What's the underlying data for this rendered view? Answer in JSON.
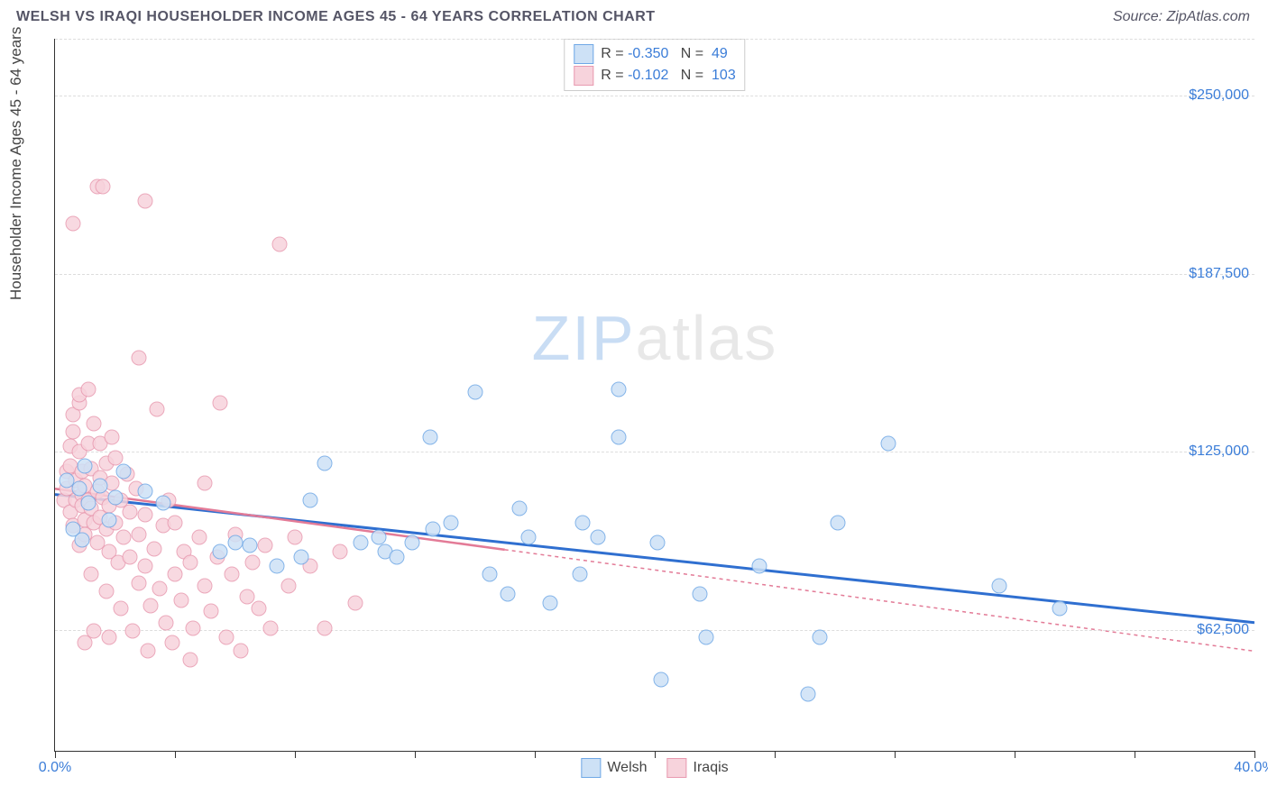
{
  "title": "WELSH VS IRAQI HOUSEHOLDER INCOME AGES 45 - 64 YEARS CORRELATION CHART",
  "source_prefix": "Source: ",
  "source": "ZipAtlas.com",
  "ylabel": "Householder Income Ages 45 - 64 years",
  "watermark_a": "ZIP",
  "watermark_b": "atlas",
  "chart": {
    "type": "scatter",
    "background_color": "#ffffff",
    "grid_color": "#dddddd",
    "axis_color": "#333333",
    "xlim": [
      0,
      40
    ],
    "ylim": [
      20000,
      270000
    ],
    "ytick_values": [
      62500,
      125000,
      187500,
      250000
    ],
    "ytick_labels": [
      "$62,500",
      "$125,000",
      "$187,500",
      "$250,000"
    ],
    "xtick_values": [
      0,
      4,
      8,
      12,
      16,
      20,
      24,
      28,
      32,
      36,
      40
    ],
    "xtick_labels": {
      "0": "0.0%",
      "40": "40.0%"
    },
    "title_fontsize": 16,
    "label_fontsize": 17,
    "tick_fontsize": 16,
    "marker_size": 17
  },
  "series": [
    {
      "key": "welsh",
      "label": "Welsh",
      "fill": "#cde1f6",
      "stroke": "#6fa8e6",
      "line_color": "#2f6fd0",
      "line_dash": "none",
      "R": "-0.350",
      "N": "49",
      "trend": {
        "x1": 0,
        "y1": 110000,
        "x2": 40,
        "y2": 65000
      },
      "points": [
        [
          0.4,
          115000
        ],
        [
          0.6,
          98000
        ],
        [
          0.8,
          112000
        ],
        [
          0.9,
          94000
        ],
        [
          1.0,
          120000
        ],
        [
          1.1,
          107000
        ],
        [
          1.5,
          113000
        ],
        [
          1.8,
          101000
        ],
        [
          2.0,
          109000
        ],
        [
          2.3,
          118000
        ],
        [
          3.0,
          111000
        ],
        [
          3.6,
          107000
        ],
        [
          5.5,
          90000
        ],
        [
          6.0,
          93000
        ],
        [
          6.5,
          92000
        ],
        [
          7.4,
          85000
        ],
        [
          8.2,
          88000
        ],
        [
          8.5,
          108000
        ],
        [
          9.0,
          121000
        ],
        [
          10.2,
          93000
        ],
        [
          10.8,
          95000
        ],
        [
          11.0,
          90000
        ],
        [
          11.4,
          88000
        ],
        [
          11.9,
          93000
        ],
        [
          12.5,
          130000
        ],
        [
          12.6,
          98000
        ],
        [
          13.2,
          100000
        ],
        [
          14.0,
          146000
        ],
        [
          14.5,
          82000
        ],
        [
          15.1,
          75000
        ],
        [
          15.5,
          105000
        ],
        [
          15.8,
          95000
        ],
        [
          16.5,
          72000
        ],
        [
          17.5,
          82000
        ],
        [
          17.6,
          100000
        ],
        [
          18.1,
          95000
        ],
        [
          18.8,
          130000
        ],
        [
          18.8,
          147000
        ],
        [
          20.2,
          45000
        ],
        [
          20.1,
          93000
        ],
        [
          21.5,
          75000
        ],
        [
          21.7,
          60000
        ],
        [
          23.5,
          85000
        ],
        [
          25.1,
          40000
        ],
        [
          25.5,
          60000
        ],
        [
          26.1,
          100000
        ],
        [
          27.8,
          128000
        ],
        [
          33.5,
          70000
        ],
        [
          31.5,
          78000
        ]
      ]
    },
    {
      "key": "iraqis",
      "label": "Iraqis",
      "fill": "#f7d3dc",
      "stroke": "#e89ab0",
      "line_color": "#e37b97",
      "line_dash": "4 4",
      "R": "-0.102",
      "N": "103",
      "trend": {
        "x1": 0,
        "y1": 112000,
        "x2": 40,
        "y2": 55000
      },
      "trend_solid_until": 15,
      "points": [
        [
          0.3,
          108000
        ],
        [
          0.4,
          112000
        ],
        [
          0.4,
          118000
        ],
        [
          0.5,
          120000
        ],
        [
          0.5,
          127000
        ],
        [
          0.5,
          104000
        ],
        [
          0.6,
          132000
        ],
        [
          0.6,
          138000
        ],
        [
          0.6,
          99000
        ],
        [
          0.7,
          108000
        ],
        [
          0.7,
          115000
        ],
        [
          0.8,
          142000
        ],
        [
          0.8,
          125000
        ],
        [
          0.8,
          92000
        ],
        [
          0.9,
          110000
        ],
        [
          0.9,
          118000
        ],
        [
          0.9,
          106000
        ],
        [
          1.0,
          101000
        ],
        [
          1.0,
          113000
        ],
        [
          1.0,
          96000
        ],
        [
          1.1,
          128000
        ],
        [
          1.1,
          108000
        ],
        [
          1.2,
          119000
        ],
        [
          1.2,
          105000
        ],
        [
          1.3,
          100000
        ],
        [
          1.3,
          135000
        ],
        [
          1.4,
          111000
        ],
        [
          1.4,
          93000
        ],
        [
          1.5,
          116000
        ],
        [
          1.5,
          102000
        ],
        [
          1.6,
          109000
        ],
        [
          1.7,
          98000
        ],
        [
          1.7,
          121000
        ],
        [
          1.8,
          106000
        ],
        [
          1.8,
          90000
        ],
        [
          1.9,
          114000
        ],
        [
          2.0,
          100000
        ],
        [
          2.0,
          123000
        ],
        [
          2.1,
          86000
        ],
        [
          2.2,
          108000
        ],
        [
          2.3,
          95000
        ],
        [
          2.4,
          117000
        ],
        [
          2.5,
          88000
        ],
        [
          2.5,
          104000
        ],
        [
          2.7,
          112000
        ],
        [
          2.8,
          79000
        ],
        [
          2.8,
          96000
        ],
        [
          3.0,
          85000
        ],
        [
          3.0,
          103000
        ],
        [
          3.2,
          71000
        ],
        [
          3.3,
          91000
        ],
        [
          3.4,
          140000
        ],
        [
          3.5,
          77000
        ],
        [
          3.6,
          99000
        ],
        [
          3.7,
          65000
        ],
        [
          3.8,
          108000
        ],
        [
          4.0,
          82000
        ],
        [
          4.0,
          100000
        ],
        [
          4.2,
          73000
        ],
        [
          4.3,
          90000
        ],
        [
          4.5,
          86000
        ],
        [
          4.6,
          63000
        ],
        [
          4.8,
          95000
        ],
        [
          5.0,
          78000
        ],
        [
          5.0,
          114000
        ],
        [
          5.2,
          69000
        ],
        [
          5.4,
          88000
        ],
        [
          5.5,
          142000
        ],
        [
          5.7,
          60000
        ],
        [
          5.9,
          82000
        ],
        [
          6.0,
          96000
        ],
        [
          6.2,
          55000
        ],
        [
          6.4,
          74000
        ],
        [
          6.6,
          86000
        ],
        [
          6.8,
          70000
        ],
        [
          7.0,
          92000
        ],
        [
          7.2,
          63000
        ],
        [
          7.5,
          198000
        ],
        [
          7.8,
          78000
        ],
        [
          8.0,
          95000
        ],
        [
          8.5,
          85000
        ],
        [
          9.0,
          63000
        ],
        [
          9.5,
          90000
        ],
        [
          10.0,
          72000
        ],
        [
          0.6,
          205000
        ],
        [
          1.4,
          218000
        ],
        [
          1.6,
          218000
        ],
        [
          3.0,
          213000
        ],
        [
          2.8,
          158000
        ],
        [
          0.8,
          145000
        ],
        [
          1.1,
          147000
        ],
        [
          1.5,
          128000
        ],
        [
          1.9,
          130000
        ],
        [
          1.2,
          82000
        ],
        [
          1.7,
          76000
        ],
        [
          2.2,
          70000
        ],
        [
          2.6,
          62000
        ],
        [
          3.1,
          55000
        ],
        [
          3.9,
          58000
        ],
        [
          4.5,
          52000
        ],
        [
          1.0,
          58000
        ],
        [
          1.3,
          62000
        ],
        [
          1.8,
          60000
        ]
      ]
    }
  ],
  "legend_top_label_R": "R =",
  "legend_top_label_N": "N ="
}
